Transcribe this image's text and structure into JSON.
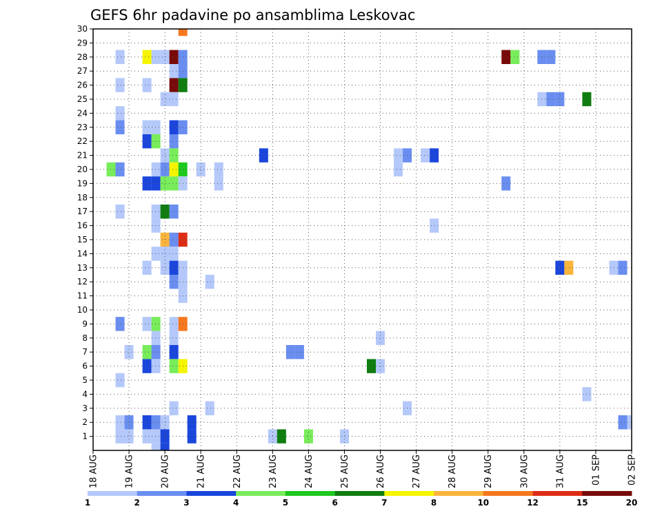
{
  "chart_data": {
    "type": "heatmap",
    "title": "GEFS 6hr padavine po ansamblima Leskovac",
    "xlabel": "",
    "ylabel": "",
    "x_tick_labels": [
      "18 AUG",
      "19 AUG",
      "20 AUG",
      "21 AUG",
      "22 AUG",
      "23 AUG",
      "24 AUG",
      "25 AUG",
      "26 AUG",
      "27 AUG",
      "28 AUG",
      "29 AUG",
      "30 AUG",
      "31 AUG",
      "01 SEP",
      "02 SEP"
    ],
    "y_tick_labels": [
      "1",
      "2",
      "3",
      "4",
      "5",
      "6",
      "7",
      "8",
      "9",
      "10",
      "11",
      "12",
      "13",
      "14",
      "15",
      "16",
      "17",
      "18",
      "19",
      "20",
      "21",
      "22",
      "23",
      "24",
      "25",
      "26",
      "27",
      "28",
      "29",
      "30"
    ],
    "x_range_steps": [
      0,
      60
    ],
    "step_hours": 6,
    "y_range": [
      0,
      30
    ],
    "grid": true,
    "colorbar": {
      "levels": [
        "1",
        "2",
        "3",
        "4",
        "5",
        "6",
        "7",
        "8",
        "10",
        "12",
        "15",
        "20"
      ],
      "colors": [
        "#b4c8fa",
        "#6a8ef0",
        "#1a46dc",
        "#78ec5a",
        "#1ec81e",
        "#0f7d0f",
        "#f5f500",
        "#fab43c",
        "#f5781e",
        "#dc2d14",
        "#780a0a"
      ]
    },
    "cells": [
      {
        "x": 3,
        "y": 28,
        "c": 0
      },
      {
        "x": 6,
        "y": 28,
        "c": 6
      },
      {
        "x": 7,
        "y": 28,
        "c": 0
      },
      {
        "x": 8,
        "y": 28,
        "c": 0
      },
      {
        "x": 9,
        "y": 28,
        "c": 10
      },
      {
        "x": 10,
        "y": 28,
        "c": 1
      },
      {
        "x": 9,
        "y": 27,
        "c": 0
      },
      {
        "x": 10,
        "y": 27,
        "c": 1
      },
      {
        "x": 3,
        "y": 26,
        "c": 0
      },
      {
        "x": 6,
        "y": 26,
        "c": 0
      },
      {
        "x": 9,
        "y": 26,
        "c": 10
      },
      {
        "x": 10,
        "y": 26,
        "c": 5
      },
      {
        "x": 8,
        "y": 25,
        "c": 0
      },
      {
        "x": 9,
        "y": 25,
        "c": 0
      },
      {
        "x": 3,
        "y": 24,
        "c": 0
      },
      {
        "x": 3,
        "y": 23,
        "c": 1
      },
      {
        "x": 6,
        "y": 23,
        "c": 0
      },
      {
        "x": 7,
        "y": 23,
        "c": 0
      },
      {
        "x": 9,
        "y": 23,
        "c": 2
      },
      {
        "x": 10,
        "y": 23,
        "c": 1
      },
      {
        "x": 6,
        "y": 22,
        "c": 2
      },
      {
        "x": 7,
        "y": 22,
        "c": 3
      },
      {
        "x": 9,
        "y": 22,
        "c": 1
      },
      {
        "x": 8,
        "y": 21,
        "c": 0
      },
      {
        "x": 9,
        "y": 21,
        "c": 3
      },
      {
        "x": 19,
        "y": 21,
        "c": 2
      },
      {
        "x": 34,
        "y": 21,
        "c": 0
      },
      {
        "x": 35,
        "y": 21,
        "c": 1
      },
      {
        "x": 37,
        "y": 21,
        "c": 0
      },
      {
        "x": 38,
        "y": 21,
        "c": 2
      },
      {
        "x": 2,
        "y": 20,
        "c": 3
      },
      {
        "x": 3,
        "y": 20,
        "c": 1
      },
      {
        "x": 7,
        "y": 20,
        "c": 0
      },
      {
        "x": 8,
        "y": 20,
        "c": 1
      },
      {
        "x": 9,
        "y": 20,
        "c": 6
      },
      {
        "x": 10,
        "y": 20,
        "c": 4
      },
      {
        "x": 12,
        "y": 20,
        "c": 0
      },
      {
        "x": 14,
        "y": 20,
        "c": 0
      },
      {
        "x": 34,
        "y": 20,
        "c": 0
      },
      {
        "x": 6,
        "y": 19,
        "c": 2
      },
      {
        "x": 7,
        "y": 19,
        "c": 2
      },
      {
        "x": 8,
        "y": 19,
        "c": 3
      },
      {
        "x": 9,
        "y": 19,
        "c": 3
      },
      {
        "x": 10,
        "y": 19,
        "c": 0
      },
      {
        "x": 14,
        "y": 19,
        "c": 0
      },
      {
        "x": 46,
        "y": 19,
        "c": 1
      },
      {
        "x": 3,
        "y": 17,
        "c": 0
      },
      {
        "x": 7,
        "y": 17,
        "c": 0
      },
      {
        "x": 8,
        "y": 17,
        "c": 5
      },
      {
        "x": 9,
        "y": 17,
        "c": 1
      },
      {
        "x": 7,
        "y": 16,
        "c": 0
      },
      {
        "x": 38,
        "y": 16,
        "c": 0
      },
      {
        "x": 8,
        "y": 15,
        "c": 7
      },
      {
        "x": 9,
        "y": 15,
        "c": 1
      },
      {
        "x": 10,
        "y": 15,
        "c": 9
      },
      {
        "x": 7,
        "y": 14,
        "c": 0
      },
      {
        "x": 8,
        "y": 14,
        "c": 0
      },
      {
        "x": 9,
        "y": 14,
        "c": 0
      },
      {
        "x": 6,
        "y": 13,
        "c": 0
      },
      {
        "x": 8,
        "y": 13,
        "c": 0
      },
      {
        "x": 9,
        "y": 13,
        "c": 2
      },
      {
        "x": 10,
        "y": 13,
        "c": 0
      },
      {
        "x": 52,
        "y": 13,
        "c": 2
      },
      {
        "x": 53,
        "y": 13,
        "c": 7
      },
      {
        "x": 58,
        "y": 13,
        "c": 0
      },
      {
        "x": 59,
        "y": 13,
        "c": 1
      },
      {
        "x": 9,
        "y": 12,
        "c": 1
      },
      {
        "x": 10,
        "y": 12,
        "c": 0
      },
      {
        "x": 13,
        "y": 12,
        "c": 0
      },
      {
        "x": 10,
        "y": 11,
        "c": 0
      },
      {
        "x": 3,
        "y": 9,
        "c": 1
      },
      {
        "x": 6,
        "y": 9,
        "c": 0
      },
      {
        "x": 7,
        "y": 9,
        "c": 3
      },
      {
        "x": 9,
        "y": 9,
        "c": 0
      },
      {
        "x": 10,
        "y": 9,
        "c": 8
      },
      {
        "x": 7,
        "y": 8,
        "c": 0
      },
      {
        "x": 9,
        "y": 8,
        "c": 0
      },
      {
        "x": 32,
        "y": 8,
        "c": 0
      },
      {
        "x": 4,
        "y": 7,
        "c": 0
      },
      {
        "x": 6,
        "y": 7,
        "c": 3
      },
      {
        "x": 7,
        "y": 7,
        "c": 1
      },
      {
        "x": 9,
        "y": 7,
        "c": 2
      },
      {
        "x": 22,
        "y": 7,
        "c": 1
      },
      {
        "x": 23,
        "y": 7,
        "c": 1
      },
      {
        "x": 6,
        "y": 6,
        "c": 2
      },
      {
        "x": 7,
        "y": 6,
        "c": 0
      },
      {
        "x": 9,
        "y": 6,
        "c": 3
      },
      {
        "x": 10,
        "y": 6,
        "c": 6
      },
      {
        "x": 31,
        "y": 6,
        "c": 5
      },
      {
        "x": 32,
        "y": 6,
        "c": 0
      },
      {
        "x": 3,
        "y": 5,
        "c": 0
      },
      {
        "x": 55,
        "y": 4,
        "c": 0
      },
      {
        "x": 9,
        "y": 3,
        "c": 0
      },
      {
        "x": 13,
        "y": 3,
        "c": 0
      },
      {
        "x": 35,
        "y": 3,
        "c": 0
      },
      {
        "x": 3,
        "y": 2,
        "c": 0
      },
      {
        "x": 4,
        "y": 2,
        "c": 1
      },
      {
        "x": 6,
        "y": 2,
        "c": 2
      },
      {
        "x": 7,
        "y": 2,
        "c": 1
      },
      {
        "x": 8,
        "y": 2,
        "c": 0
      },
      {
        "x": 11,
        "y": 2,
        "c": 2
      },
      {
        "x": 59,
        "y": 2,
        "c": 1
      },
      {
        "x": 60,
        "y": 2,
        "c": 0
      },
      {
        "x": 3,
        "y": 1,
        "c": 0
      },
      {
        "x": 4,
        "y": 1,
        "c": 0
      },
      {
        "x": 6,
        "y": 1,
        "c": 0
      },
      {
        "x": 7,
        "y": 1,
        "c": 0
      },
      {
        "x": 8,
        "y": 1,
        "c": 2
      },
      {
        "x": 11,
        "y": 1,
        "c": 2
      },
      {
        "x": 20,
        "y": 1,
        "c": 0
      },
      {
        "x": 21,
        "y": 1,
        "c": 5
      },
      {
        "x": 24,
        "y": 1,
        "c": 3
      },
      {
        "x": 28,
        "y": 1,
        "c": 0
      },
      {
        "x": 7,
        "y": 0,
        "c": 0
      },
      {
        "x": 8,
        "y": 0,
        "c": 2
      },
      {
        "x": 10,
        "y": 30,
        "c": 8
      },
      {
        "x": 46,
        "y": 28,
        "c": 10
      },
      {
        "x": 47,
        "y": 28,
        "c": 3
      },
      {
        "x": 50,
        "y": 28,
        "c": 1
      },
      {
        "x": 51,
        "y": 28,
        "c": 1
      },
      {
        "x": 50,
        "y": 25,
        "c": 0
      },
      {
        "x": 51,
        "y": 25,
        "c": 1
      },
      {
        "x": 52,
        "y": 25,
        "c": 1
      },
      {
        "x": 55,
        "y": 25,
        "c": 5
      }
    ]
  }
}
